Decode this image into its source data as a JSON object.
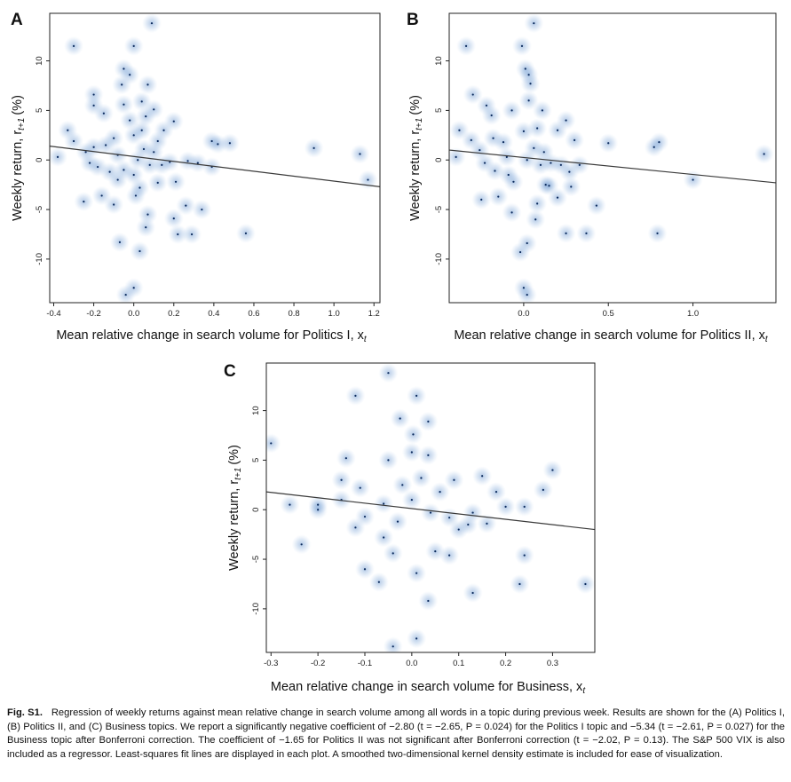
{
  "figure": {
    "caption_label": "Fig. S1.",
    "caption_text": "Regression of weekly returns against mean relative change in search volume among all words in a topic during previous week. Results are shown for the (A) Politics I, (B) Politics II, and (C) Business topics. We report a significantly negative coefficient of −2.80 (t = −2.65, P = 0.024) for the Politics I topic and −5.34 (t = −2.61, P = 0.027) for the Business topic after Bonferroni correction. The coefficient of −1.65 for Politics II was not significant after Bonferroni correction (t = −2.02, P = 0.13). The S&P 500 VIX is also included as a regressor. Least-squares fit lines are displayed in each plot. A smoothed two-dimensional kernel density estimate is included for ease of visualization."
  },
  "colors": {
    "density": "#1f5fb4",
    "fit_line": "#3a3a3a",
    "frame": "#222222"
  },
  "chart_data": [
    {
      "type": "scatter",
      "panel": "A",
      "xlabel": "Mean relative change in search volume for Politics I, x",
      "xlabel_sub": "t",
      "ylabel": "Weekly return, r",
      "ylabel_sub": "t+1",
      "ylabel_unit": "(%)",
      "xlim": [
        -0.42,
        1.23
      ],
      "ylim": [
        -14.4,
        14.8
      ],
      "xticks": [
        -0.4,
        -0.2,
        0.0,
        0.2,
        0.4,
        0.6,
        0.8,
        1.0,
        1.2
      ],
      "xtick_labels": [
        "-0.4",
        "-0.2",
        "0.0",
        "0.2",
        "0.4",
        "0.6",
        "0.8",
        "1.0",
        "1.2"
      ],
      "yticks": [
        -10,
        -5,
        0,
        5,
        10
      ],
      "ytick_labels": [
        "-10",
        "-5",
        "0",
        "5",
        "10"
      ],
      "fit_line": {
        "x": [
          -0.42,
          1.23
        ],
        "y": [
          1.4,
          -2.7
        ]
      },
      "points": [
        [
          -0.3,
          11.5
        ],
        [
          0.0,
          11.5
        ],
        [
          0.09,
          13.8
        ],
        [
          -0.05,
          9.2
        ],
        [
          -0.02,
          8.6
        ],
        [
          -0.06,
          7.6
        ],
        [
          0.07,
          7.6
        ],
        [
          -0.2,
          6.6
        ],
        [
          -0.2,
          5.5
        ],
        [
          -0.05,
          5.6
        ],
        [
          0.04,
          5.9
        ],
        [
          -0.15,
          4.7
        ],
        [
          0.1,
          5.1
        ],
        [
          0.06,
          4.4
        ],
        [
          -0.33,
          3.0
        ],
        [
          -0.3,
          1.9
        ],
        [
          -0.2,
          1.3
        ],
        [
          -0.14,
          1.5
        ],
        [
          0.0,
          2.5
        ],
        [
          0.04,
          3.0
        ],
        [
          0.15,
          3.0
        ],
        [
          0.2,
          3.9
        ],
        [
          0.12,
          1.9
        ],
        [
          0.39,
          1.9
        ],
        [
          0.42,
          1.6
        ],
        [
          0.48,
          1.7
        ],
        [
          0.9,
          1.2
        ],
        [
          1.13,
          0.6
        ],
        [
          -0.38,
          0.3
        ],
        [
          -0.24,
          0.8
        ],
        [
          -0.22,
          -0.3
        ],
        [
          -0.18,
          -0.7
        ],
        [
          -0.12,
          -1.2
        ],
        [
          -0.08,
          0.5
        ],
        [
          0.02,
          0.0
        ],
        [
          0.08,
          -0.5
        ],
        [
          0.14,
          -0.5
        ],
        [
          0.18,
          -0.2
        ],
        [
          0.27,
          -0.1
        ],
        [
          0.32,
          -0.3
        ],
        [
          0.39,
          -0.7
        ],
        [
          1.17,
          -2.0
        ],
        [
          -0.08,
          -2.0
        ],
        [
          0.12,
          -2.3
        ],
        [
          0.21,
          -2.2
        ],
        [
          0.01,
          -3.6
        ],
        [
          -0.16,
          -3.6
        ],
        [
          -0.25,
          -4.2
        ],
        [
          -0.1,
          -4.5
        ],
        [
          0.2,
          -5.9
        ],
        [
          0.26,
          -4.6
        ],
        [
          0.34,
          -5.0
        ],
        [
          0.07,
          -5.5
        ],
        [
          0.22,
          -7.5
        ],
        [
          0.29,
          -7.5
        ],
        [
          0.56,
          -7.4
        ],
        [
          0.06,
          -6.8
        ],
        [
          -0.07,
          -8.3
        ],
        [
          0.03,
          -9.2
        ],
        [
          -0.04,
          -13.6
        ],
        [
          0.0,
          -12.9
        ],
        [
          -0.05,
          -1.0
        ],
        [
          0.05,
          1.1
        ],
        [
          -0.1,
          2.2
        ],
        [
          0.0,
          -1.5
        ],
        [
          0.1,
          0.8
        ],
        [
          -0.02,
          4.0
        ],
        [
          0.03,
          -2.8
        ]
      ]
    },
    {
      "type": "scatter",
      "panel": "B",
      "xlabel": "Mean relative change in search volume for Politics II, x",
      "xlabel_sub": "t",
      "ylabel": "Weekly return, r",
      "ylabel_sub": "t+1",
      "ylabel_unit": "(%)",
      "xlim": [
        -0.44,
        1.49
      ],
      "ylim": [
        -14.4,
        14.8
      ],
      "xticks": [
        0.0,
        0.5,
        1.0
      ],
      "xtick_labels": [
        "0.0",
        "0.5",
        "1.0"
      ],
      "yticks": [
        -10,
        -5,
        0,
        5,
        10
      ],
      "ytick_labels": [
        "-10",
        "-5",
        "0",
        "5",
        "10"
      ],
      "fit_line": {
        "x": [
          -0.44,
          1.49
        ],
        "y": [
          1.0,
          -2.3
        ]
      },
      "points": [
        [
          -0.34,
          11.5
        ],
        [
          -0.01,
          11.5
        ],
        [
          0.06,
          13.8
        ],
        [
          0.01,
          9.2
        ],
        [
          0.03,
          8.6
        ],
        [
          0.04,
          7.7
        ],
        [
          -0.3,
          6.6
        ],
        [
          -0.22,
          5.5
        ],
        [
          -0.19,
          4.5
        ],
        [
          -0.07,
          5.0
        ],
        [
          0.03,
          6.0
        ],
        [
          0.11,
          5.0
        ],
        [
          -0.38,
          3.0
        ],
        [
          -0.31,
          2.0
        ],
        [
          -0.18,
          2.2
        ],
        [
          0.0,
          2.9
        ],
        [
          0.08,
          3.2
        ],
        [
          0.2,
          3.0
        ],
        [
          0.25,
          4.0
        ],
        [
          0.5,
          1.7
        ],
        [
          0.77,
          1.3
        ],
        [
          0.8,
          1.8
        ],
        [
          1.42,
          0.6
        ],
        [
          0.3,
          2.0
        ],
        [
          -0.4,
          0.3
        ],
        [
          -0.26,
          1.0
        ],
        [
          -0.23,
          -0.3
        ],
        [
          -0.17,
          -1.1
        ],
        [
          -0.1,
          0.3
        ],
        [
          0.02,
          0.0
        ],
        [
          0.1,
          -0.5
        ],
        [
          0.16,
          -0.3
        ],
        [
          0.22,
          -0.5
        ],
        [
          0.27,
          -1.2
        ],
        [
          0.33,
          -0.5
        ],
        [
          1.0,
          -2.0
        ],
        [
          -0.06,
          -2.2
        ],
        [
          0.13,
          -2.5
        ],
        [
          0.2,
          -3.8
        ],
        [
          0.28,
          -2.7
        ],
        [
          0.43,
          -4.6
        ],
        [
          -0.15,
          -3.7
        ],
        [
          -0.25,
          -4.0
        ],
        [
          -0.07,
          -5.3
        ],
        [
          0.07,
          -6.0
        ],
        [
          0.08,
          -4.4
        ],
        [
          0.25,
          -7.4
        ],
        [
          0.37,
          -7.4
        ],
        [
          0.79,
          -7.4
        ],
        [
          -0.02,
          -9.3
        ],
        [
          0.02,
          -8.4
        ],
        [
          0.0,
          -12.9
        ],
        [
          0.02,
          -13.6
        ],
        [
          -0.09,
          -1.5
        ],
        [
          0.06,
          1.2
        ],
        [
          -0.12,
          1.8
        ],
        [
          0.12,
          0.8
        ],
        [
          0.15,
          -2.6
        ]
      ]
    },
    {
      "type": "scatter",
      "panel": "C",
      "xlabel": "Mean relative change in search volume for Business, x",
      "xlabel_sub": "t",
      "ylabel": "Weekly return, r",
      "ylabel_sub": "t+1",
      "ylabel_unit": "(%)",
      "xlim": [
        -0.31,
        0.39
      ],
      "ylim": [
        -14.4,
        14.8
      ],
      "xticks": [
        -0.3,
        -0.2,
        -0.1,
        0.0,
        0.1,
        0.2,
        0.3
      ],
      "xtick_labels": [
        "-0.3",
        "-0.2",
        "-0.1",
        "0.0",
        "0.1",
        "0.2",
        "0.3"
      ],
      "yticks": [
        -10,
        -5,
        0,
        5,
        10
      ],
      "ytick_labels": [
        "-10",
        "-5",
        "0",
        "5",
        "10"
      ],
      "fit_line": {
        "x": [
          -0.31,
          0.39
        ],
        "y": [
          1.8,
          -2.0
        ]
      },
      "points": [
        [
          -0.3,
          6.7
        ],
        [
          -0.12,
          11.5
        ],
        [
          0.01,
          11.5
        ],
        [
          -0.05,
          13.8
        ],
        [
          -0.025,
          9.2
        ],
        [
          0.003,
          7.6
        ],
        [
          0.035,
          8.9
        ],
        [
          -0.14,
          5.2
        ],
        [
          -0.05,
          5.0
        ],
        [
          0.0,
          5.8
        ],
        [
          0.035,
          5.5
        ],
        [
          0.15,
          3.4
        ],
        [
          0.3,
          4.0
        ],
        [
          -0.15,
          3.0
        ],
        [
          -0.11,
          2.2
        ],
        [
          0.09,
          3.0
        ],
        [
          0.18,
          1.8
        ],
        [
          0.28,
          2.0
        ],
        [
          -0.2,
          0.5
        ],
        [
          -0.26,
          0.5
        ],
        [
          -0.2,
          0.0
        ],
        [
          -0.15,
          1.0
        ],
        [
          -0.12,
          -1.8
        ],
        [
          -0.1,
          -0.7
        ],
        [
          -0.06,
          0.6
        ],
        [
          0.0,
          1.0
        ],
        [
          0.04,
          -0.3
        ],
        [
          0.08,
          -0.8
        ],
        [
          0.1,
          -2.0
        ],
        [
          0.12,
          -1.5
        ],
        [
          0.13,
          -0.3
        ],
        [
          0.2,
          0.3
        ],
        [
          0.24,
          0.3
        ],
        [
          -0.235,
          -3.5
        ],
        [
          -0.06,
          -2.8
        ],
        [
          0.05,
          -4.2
        ],
        [
          0.08,
          -4.6
        ],
        [
          0.24,
          -4.6
        ],
        [
          -0.1,
          -6.0
        ],
        [
          -0.07,
          -7.3
        ],
        [
          -0.04,
          -4.4
        ],
        [
          0.01,
          -6.4
        ],
        [
          0.23,
          -7.5
        ],
        [
          0.37,
          -7.5
        ],
        [
          0.13,
          -8.4
        ],
        [
          0.035,
          -9.2
        ],
        [
          0.01,
          -13.0
        ],
        [
          -0.04,
          -13.8
        ],
        [
          0.16,
          -1.4
        ],
        [
          0.06,
          1.8
        ],
        [
          -0.02,
          2.5
        ],
        [
          -0.03,
          -1.2
        ],
        [
          0.02,
          3.2
        ]
      ]
    }
  ]
}
